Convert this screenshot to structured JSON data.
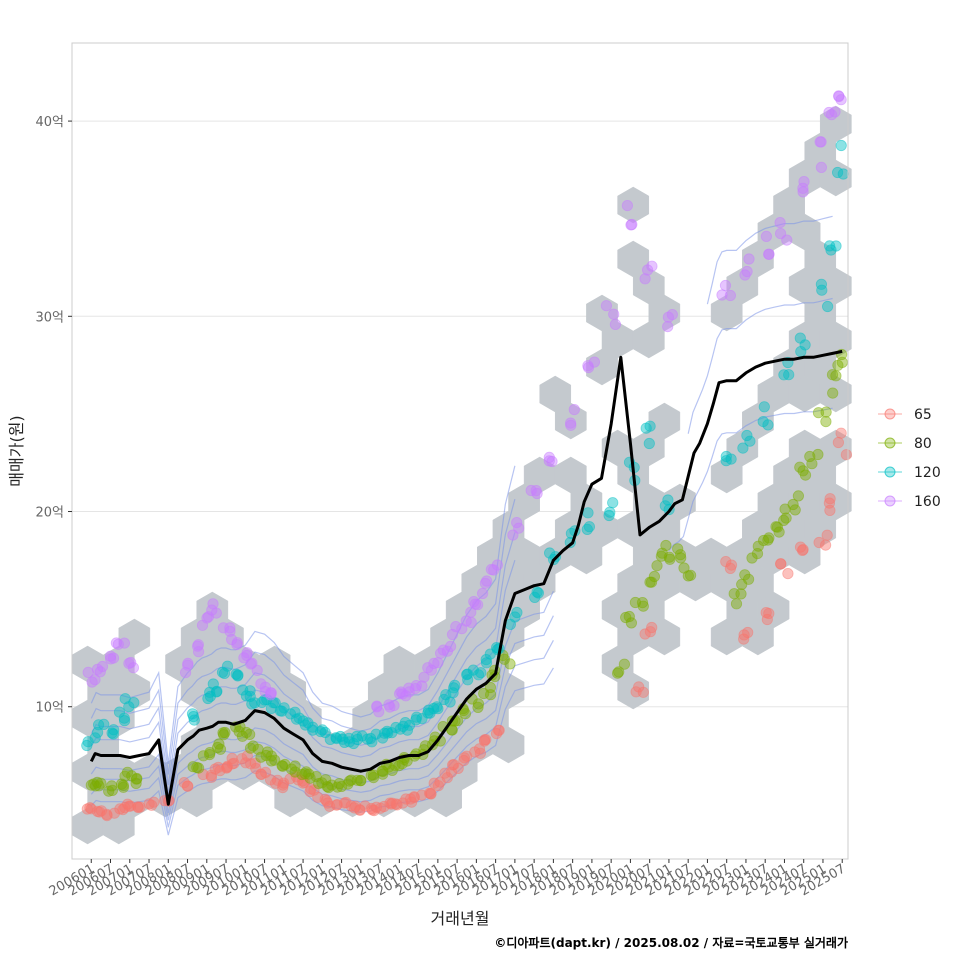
{
  "chart_data": {
    "type": "scatter",
    "title": "",
    "xlabel": "거래년월",
    "ylabel": "매매가(원)",
    "caption": "©디아파트(dapt.kr) / 2025.08.02 / 자료=국토교통부 실거래가",
    "x_tick_labels": [
      "200601",
      "200607",
      "200701",
      "200707",
      "200801",
      "200807",
      "200901",
      "200907",
      "201001",
      "201007",
      "201101",
      "201107",
      "201201",
      "201207",
      "201301",
      "201307",
      "201401",
      "201407",
      "201501",
      "201507",
      "201601",
      "201607",
      "201701",
      "201707",
      "201801",
      "201807",
      "201901",
      "201907",
      "202001",
      "202007",
      "202101",
      "202107",
      "202201",
      "202207",
      "202301",
      "202307",
      "202401",
      "202407",
      "202501",
      "202507"
    ],
    "y_tick_labels": [
      "10억",
      "20억",
      "30억",
      "40억"
    ],
    "y_ticks": [
      10,
      20,
      30,
      40
    ],
    "ylim": [
      2.2,
      44
    ],
    "xlim": [
      -1.0,
      39.3
    ],
    "y_unit": "억원",
    "legend": {
      "position": "right",
      "entries": [
        {
          "label": "65",
          "color": "#F8766D"
        },
        {
          "label": "80",
          "color": "#7CAE00"
        },
        {
          "label": "120",
          "color": "#00BFC4"
        },
        {
          "label": "160",
          "color": "#C77CFF"
        }
      ]
    },
    "colors": {
      "hex": "#c4c9ce",
      "median_line": "#000000",
      "contour": "#7b93e8",
      "grid": "#e5e5e5",
      "panel_border": "#cccccc"
    },
    "median_series": {
      "name": "median",
      "x": [
        0,
        0.2,
        0.5,
        1,
        1.5,
        2,
        2.5,
        3,
        3.5,
        4,
        4.5,
        5,
        5.3,
        5.6,
        6,
        6.3,
        6.6,
        7,
        7.4,
        8,
        8.5,
        9,
        9.5,
        10,
        10.5,
        11,
        11.5,
        12,
        12.5,
        13,
        13.5,
        14,
        14.5,
        15,
        15.5,
        16,
        16.5,
        17,
        17.5,
        18,
        18.5,
        19,
        19.5,
        20,
        20.5,
        21,
        21.5,
        22,
        22.5,
        23,
        23.5,
        24,
        24.5,
        25,
        25.3,
        25.6,
        26,
        26.5,
        27,
        27.5,
        28,
        28.5,
        29,
        29.5,
        30,
        30.3,
        30.7,
        31,
        31.3,
        31.6,
        32,
        32.3,
        32.6,
        33,
        33.5,
        34,
        34.5,
        35,
        35.5,
        36,
        36.5,
        37,
        37.5,
        38,
        38.5,
        39
      ],
      "values": [
        7.2,
        7.6,
        7.5,
        7.5,
        7.5,
        7.4,
        7.5,
        7.6,
        8.3,
        5.0,
        7.8,
        8.3,
        8.5,
        8.8,
        8.9,
        9.0,
        9.2,
        9.2,
        9.1,
        9.3,
        9.8,
        9.7,
        9.4,
        8.9,
        8.6,
        8.3,
        7.6,
        7.2,
        7.1,
        6.9,
        6.8,
        6.7,
        6.8,
        7.1,
        7.2,
        7.4,
        7.5,
        7.5,
        7.7,
        8.3,
        9.0,
        9.7,
        10.4,
        10.9,
        11.2,
        11.7,
        14.4,
        15.8,
        16.0,
        16.2,
        16.3,
        17.5,
        18.0,
        18.4,
        19.3,
        20.5,
        21.4,
        21.7,
        24.5,
        27.9,
        23.5,
        18.8,
        19.2,
        19.5,
        20.0,
        20.4,
        20.6,
        21.8,
        23.0,
        23.5,
        24.5,
        25.5,
        26.6,
        26.7,
        26.7,
        27.1,
        27.4,
        27.6,
        27.7,
        27.8,
        27.8,
        27.9,
        27.9,
        28.0,
        28.1,
        28.2
      ]
    },
    "series": [
      {
        "name": "65",
        "x": [
          0,
          0.5,
          1,
          1.5,
          2,
          2.5,
          3,
          4,
          5,
          6,
          6.5,
          7,
          7.5,
          8,
          8.5,
          9,
          9.5,
          10,
          10.5,
          11,
          11.5,
          12,
          12.5,
          13,
          13.5,
          14,
          14.5,
          15,
          15.5,
          16,
          16.5,
          17,
          17.5,
          18,
          18.5,
          19,
          19.5,
          20,
          20.5,
          21,
          28.5,
          29,
          33,
          34,
          35,
          36,
          37,
          38,
          38.5,
          39
        ],
        "values": [
          4.8,
          4.6,
          4.5,
          4.8,
          5.0,
          4.9,
          5.0,
          5.2,
          6.0,
          6.5,
          6.8,
          7.0,
          7.2,
          7.3,
          7.0,
          6.5,
          6.2,
          6.0,
          6.4,
          6.2,
          5.8,
          5.3,
          5.0,
          5.1,
          4.9,
          4.8,
          4.7,
          4.8,
          5.0,
          5.1,
          5.2,
          5.4,
          5.6,
          6.0,
          6.5,
          7.0,
          7.4,
          7.8,
          8.2,
          8.8,
          11.0,
          13.8,
          17.5,
          13.5,
          14.5,
          17.0,
          17.8,
          18.5,
          20.5,
          23.5
        ]
      },
      {
        "name": "80",
        "x": [
          0,
          0.5,
          1,
          1.5,
          2,
          2.5,
          5.5,
          6,
          6.5,
          7,
          7.5,
          8,
          8.5,
          9,
          9.5,
          10,
          10.5,
          11,
          11.5,
          12,
          12.5,
          13,
          13.5,
          14,
          14.5,
          15,
          15.5,
          16,
          16.5,
          17,
          17.5,
          18,
          18.5,
          19,
          19.5,
          20,
          20.5,
          21,
          21.5,
          27.5,
          28,
          28.5,
          29,
          29.5,
          30,
          30.5,
          31,
          33.5,
          34,
          34.5,
          35,
          35.5,
          36,
          36.5,
          37,
          37.5,
          38,
          38.5,
          39
        ],
        "values": [
          5.9,
          6.0,
          5.8,
          6.0,
          6.5,
          6.2,
          7.0,
          7.5,
          8.0,
          8.6,
          8.8,
          8.5,
          8.0,
          7.6,
          7.4,
          7.0,
          6.8,
          6.6,
          6.4,
          6.2,
          6.0,
          6.0,
          6.1,
          6.2,
          6.4,
          6.6,
          6.9,
          7.0,
          7.3,
          7.6,
          8.0,
          8.4,
          8.9,
          9.3,
          9.7,
          10.2,
          10.8,
          11.8,
          12.5,
          12.0,
          14.5,
          15.5,
          16.5,
          17.5,
          18.0,
          17.8,
          17.0,
          15.5,
          16.5,
          17.8,
          18.5,
          19.2,
          19.8,
          20.5,
          22.0,
          23.0,
          24.5,
          26.5,
          28.0
        ]
      },
      {
        "name": "120",
        "x": [
          0,
          0.5,
          1,
          1.5,
          2,
          5.5,
          6,
          6.5,
          7,
          7.5,
          8,
          8.5,
          9,
          9.5,
          10,
          10.5,
          11,
          11.5,
          12,
          12.5,
          13,
          13.5,
          14,
          14.5,
          15,
          15.5,
          16,
          16.5,
          17,
          17.5,
          18,
          18.5,
          19,
          19.5,
          20,
          20.5,
          21,
          22,
          23,
          24,
          25,
          26,
          27,
          28,
          29,
          30,
          33,
          34,
          35,
          36,
          37,
          38,
          38.5,
          39
        ],
        "values": [
          8.2,
          8.9,
          8.8,
          9.5,
          10.2,
          9.5,
          10.5,
          11.0,
          11.8,
          11.5,
          10.8,
          10.4,
          10.2,
          10.0,
          9.8,
          9.5,
          9.2,
          9.0,
          8.6,
          8.4,
          8.3,
          8.2,
          8.3,
          8.4,
          8.5,
          8.7,
          8.9,
          9.0,
          9.3,
          9.6,
          10.0,
          10.4,
          10.9,
          11.4,
          11.9,
          12.4,
          13.0,
          14.5,
          16.0,
          17.5,
          18.8,
          19.5,
          20.0,
          22.0,
          24.0,
          20.5,
          22.5,
          23.5,
          25.0,
          27.0,
          28.5,
          31.0,
          34.0,
          38.0
        ]
      },
      {
        "name": "160",
        "x": [
          0,
          0.5,
          1,
          1.5,
          2,
          5,
          5.5,
          6,
          6.5,
          7,
          7.5,
          8,
          8.5,
          9,
          9.5,
          15,
          15.5,
          16,
          16.5,
          17,
          17.5,
          18,
          18.5,
          19,
          19.5,
          20,
          20.5,
          21,
          22,
          23,
          24,
          25,
          26,
          27,
          28,
          29,
          30,
          33,
          34,
          35,
          36,
          37,
          38,
          38.5,
          39
        ],
        "values": [
          11.5,
          11.8,
          12.5,
          13.0,
          12.2,
          12.0,
          13.0,
          14.5,
          15.0,
          14.0,
          13.2,
          12.5,
          12.0,
          11.0,
          10.5,
          9.8,
          10.2,
          10.5,
          10.8,
          11.2,
          11.8,
          12.5,
          13.0,
          13.8,
          14.5,
          15.5,
          16.2,
          17.0,
          19.0,
          21.0,
          22.5,
          25.0,
          28.0,
          30.0,
          35.0,
          32.0,
          29.5,
          31.0,
          32.5,
          33.5,
          34.5,
          36.0,
          38.5,
          40.0,
          42.0
        ]
      }
    ]
  }
}
